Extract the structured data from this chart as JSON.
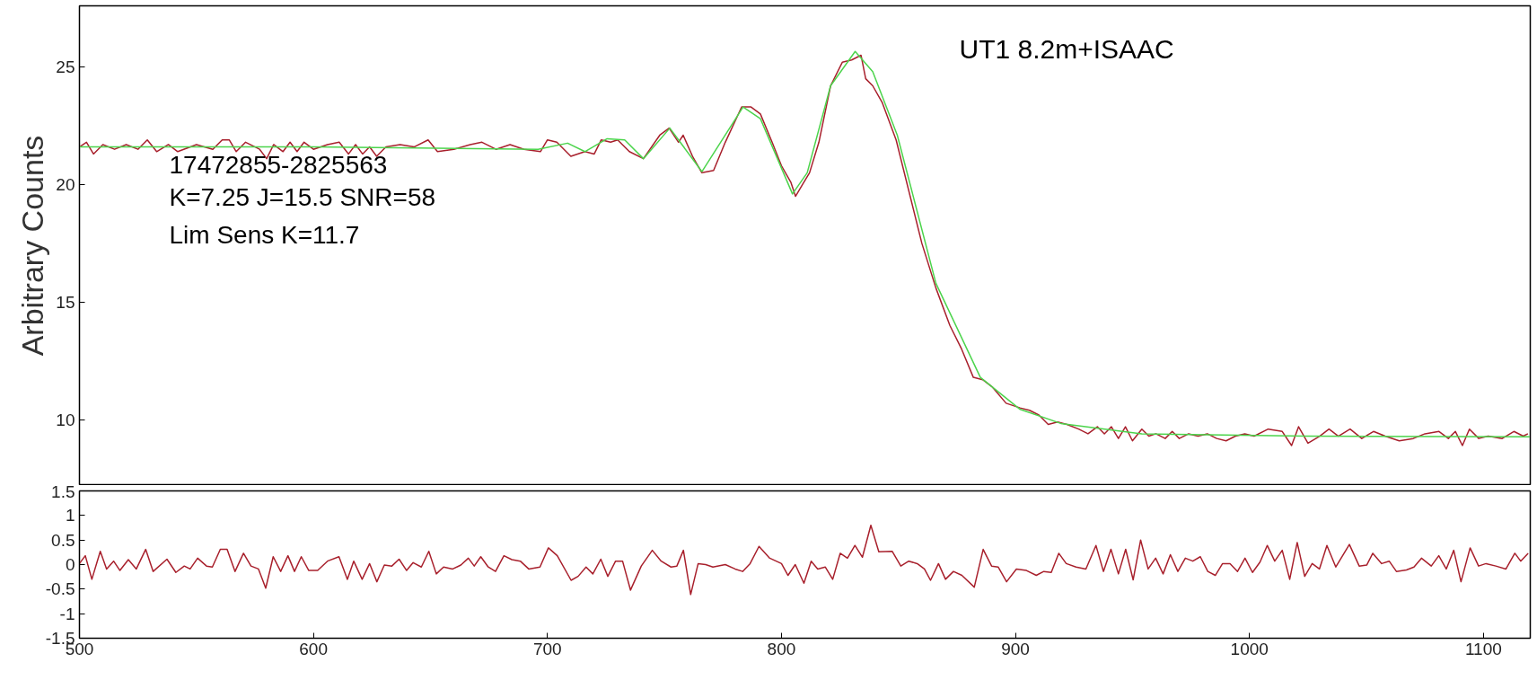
{
  "chart_data": [
    {
      "type": "line",
      "ylabel": "Arbitrary Counts",
      "xlim": [
        500,
        1120
      ],
      "ylim": [
        7.2,
        27.6
      ],
      "yticks": [
        10,
        15,
        20,
        25
      ],
      "tick_labels": "y",
      "grid": false,
      "annotations": [
        "17472855-2825563",
        "K=7.25 J=15.5   SNR=58",
        "Lim Sens K=11.7",
        "UT1 8.2m+ISAAC"
      ],
      "series": [
        {
          "color": "#a8202c",
          "x": [
            500,
            503,
            506,
            510,
            515,
            520,
            525,
            529,
            533,
            538,
            542,
            550,
            557,
            561,
            564,
            567,
            571,
            577,
            580,
            583,
            587,
            590,
            593,
            596,
            600,
            606,
            611,
            615,
            618,
            621,
            624,
            627,
            631,
            637,
            643,
            649,
            653,
            660,
            667,
            672,
            678,
            684,
            690,
            697,
            700,
            704,
            710,
            716,
            720,
            723,
            727,
            730,
            735,
            741,
            748,
            752,
            756,
            758,
            762,
            766,
            771,
            776,
            783,
            787,
            791,
            796,
            800,
            804,
            806,
            809,
            812,
            816,
            821,
            826,
            830,
            834,
            836,
            839,
            843,
            849,
            855,
            860,
            866,
            872,
            877,
            882,
            886,
            890,
            896,
            902,
            906,
            910,
            914,
            918,
            922,
            927,
            931,
            935,
            938,
            941,
            944,
            947,
            950,
            954,
            957,
            960,
            964,
            967,
            970,
            974,
            978,
            982,
            986,
            990,
            994,
            998,
            1002,
            1008,
            1014,
            1018,
            1021,
            1025,
            1030,
            1034,
            1038,
            1043,
            1048,
            1053,
            1058,
            1064,
            1070,
            1075,
            1081,
            1085,
            1088,
            1091,
            1094,
            1098,
            1102,
            1108,
            1113,
            1117,
            1119
          ],
          "values": [
            21.6,
            21.8,
            21.3,
            21.7,
            21.5,
            21.7,
            21.5,
            21.9,
            21.4,
            21.7,
            21.4,
            21.7,
            21.5,
            21.9,
            21.9,
            21.4,
            21.8,
            21.5,
            21.1,
            21.7,
            21.4,
            21.8,
            21.4,
            21.8,
            21.5,
            21.7,
            21.8,
            21.3,
            21.7,
            21.3,
            21.6,
            21.2,
            21.6,
            21.7,
            21.6,
            21.9,
            21.4,
            21.5,
            21.7,
            21.8,
            21.5,
            21.7,
            21.5,
            21.4,
            21.9,
            21.8,
            21.2,
            21.4,
            21.3,
            21.9,
            21.8,
            21.9,
            21.4,
            21.1,
            22.1,
            22.4,
            21.8,
            22.1,
            21.2,
            20.5,
            20.6,
            21.8,
            23.3,
            23.3,
            23.0,
            21.8,
            20.8,
            20.1,
            19.5,
            20.0,
            20.5,
            21.8,
            24.2,
            25.2,
            25.3,
            25.5,
            24.5,
            24.2,
            23.5,
            21.9,
            19.5,
            17.5,
            15.6,
            14.0,
            13.0,
            11.8,
            11.7,
            11.4,
            10.7,
            10.5,
            10.4,
            10.2,
            9.8,
            9.9,
            9.8,
            9.6,
            9.4,
            9.7,
            9.4,
            9.7,
            9.2,
            9.7,
            9.1,
            9.6,
            9.3,
            9.4,
            9.2,
            9.5,
            9.2,
            9.4,
            9.3,
            9.4,
            9.2,
            9.1,
            9.3,
            9.4,
            9.3,
            9.6,
            9.5,
            8.9,
            9.7,
            9.0,
            9.3,
            9.6,
            9.3,
            9.6,
            9.2,
            9.5,
            9.3,
            9.1,
            9.2,
            9.4,
            9.5,
            9.2,
            9.5,
            8.9,
            9.6,
            9.2,
            9.3,
            9.2,
            9.5,
            9.3,
            9.4
          ]
        },
        {
          "color": "#4cd44c",
          "x": [
            500,
            600,
            696,
            708.6,
            716,
            725.5,
            733,
            741,
            752.3,
            766,
            783.6,
            791,
            804.7,
            811,
            821,
            831.5,
            839,
            849.5,
            866,
            885,
            901.8,
            919.4,
            954,
            1024,
            1119.8
          ],
          "values": [
            21.6,
            21.6,
            21.5,
            21.76,
            21.4,
            21.95,
            21.9,
            21.1,
            22.4,
            20.55,
            23.3,
            22.8,
            19.6,
            20.5,
            24.2,
            25.66,
            24.8,
            22.1,
            15.8,
            11.8,
            10.45,
            9.84,
            9.4,
            9.3,
            9.27
          ]
        }
      ]
    },
    {
      "type": "line",
      "xlim": [
        500,
        1120
      ],
      "ylim": [
        -1.5,
        1.5
      ],
      "xticks": [
        500,
        600,
        700,
        800,
        900,
        1000,
        1100
      ],
      "yticks": [
        -1.5,
        -1,
        -0.5,
        0,
        0.5,
        1,
        1.5
      ],
      "grid": false,
      "series": [
        {
          "color": "#a8202c",
          "x": [
            500,
            502.5,
            505.3,
            508.9,
            511.6,
            514.6,
            517.3,
            520.9,
            524.3,
            528.3,
            531.5,
            537.4,
            541.2,
            544.8,
            547.3,
            550.5,
            554.3,
            556.8,
            560.2,
            563.1,
            566.5,
            570.1,
            573.3,
            576.5,
            579.6,
            582.8,
            586.0,
            589.1,
            591.9,
            594.8,
            598.0,
            601.8,
            606.0,
            610.9,
            614.5,
            617.2,
            620.8,
            624.0,
            627.1,
            630.3,
            633.5,
            636.6,
            639.8,
            642.6,
            646.1,
            649.3,
            652.5,
            655.6,
            659.5,
            663.0,
            666.2,
            668.7,
            671.5,
            674.7,
            677.8,
            681.4,
            684.8,
            688.4,
            692.0,
            696.8,
            700.4,
            704.2,
            710.1,
            713.1,
            716.5,
            719.4,
            722.8,
            725.8,
            729.1,
            732.1,
            735.5,
            740.1,
            744.8,
            748.6,
            752.8,
            755.3,
            758.1,
            761.2,
            764.4,
            767.6,
            770.7,
            776.0,
            780.2,
            783.4,
            786.6,
            790.4,
            795.0,
            800,
            802.8,
            805.9,
            809.6,
            812.7,
            815.5,
            818.7,
            821.9,
            825.1,
            828.2,
            831.4,
            834.6,
            838.2,
            841.6,
            847.3,
            851.0,
            854.4,
            858.0,
            861.1,
            863.7,
            867.1,
            870.1,
            873.5,
            877.1,
            882.4,
            886.2,
            889.8,
            892.6,
            896.2,
            900.4,
            904.7,
            908.9,
            912.1,
            915.3,
            918.5,
            921.7,
            925.9,
            930.1,
            934.4,
            937.6,
            940.8,
            944.0,
            947.1,
            950.3,
            953.5,
            956.7,
            959.9,
            963.1,
            966.2,
            969.4,
            972.6,
            975.8,
            979.0,
            982.2,
            985.4,
            988.5,
            991.7,
            994.9,
            998.1,
            1001.3,
            1004.5,
            1007.6,
            1010.8,
            1014.0,
            1017.2,
            1020.4,
            1023.6,
            1026.8,
            1029.9,
            1033.1,
            1036.9,
            1042.7,
            1046.9,
            1050.1,
            1052.7,
            1056.5,
            1059.7,
            1062.8,
            1067.1,
            1070.3,
            1073.5,
            1077.7,
            1080.9,
            1084.1,
            1087.3,
            1090.4,
            1094.3,
            1097.9,
            1101.1,
            1105.3,
            1109.6,
            1113.4,
            1115.9,
            1119.1
          ],
          "values": [
            0.02,
            0.18,
            -0.3,
            0.27,
            -0.09,
            0.07,
            -0.12,
            0.1,
            -0.09,
            0.31,
            -0.14,
            0.11,
            -0.16,
            -0.03,
            -0.09,
            0.13,
            -0.03,
            -0.05,
            0.31,
            0.31,
            -0.14,
            0.23,
            -0.03,
            -0.09,
            -0.48,
            0.16,
            -0.14,
            0.18,
            -0.14,
            0.16,
            -0.12,
            -0.12,
            0.07,
            0.16,
            -0.3,
            0.07,
            -0.3,
            0.02,
            -0.35,
            -0.01,
            -0.03,
            0.11,
            -0.12,
            0.04,
            -0.05,
            0.27,
            -0.19,
            -0.05,
            -0.09,
            -0.01,
            0.13,
            -0.03,
            0.16,
            -0.05,
            -0.14,
            0.18,
            0.1,
            0.07,
            -0.09,
            -0.05,
            0.34,
            0.18,
            -0.32,
            -0.24,
            -0.05,
            -0.19,
            0.11,
            -0.24,
            0.07,
            0.07,
            -0.52,
            -0.03,
            0.29,
            0.07,
            -0.05,
            -0.03,
            0.29,
            -0.61,
            0.02,
            0.0,
            -0.05,
            0.0,
            -0.09,
            -0.14,
            0.02,
            0.37,
            0.13,
            0.02,
            -0.22,
            0.0,
            -0.38,
            0.07,
            -0.09,
            -0.05,
            -0.3,
            0.23,
            0.13,
            0.39,
            0.15,
            0.8,
            0.26,
            0.27,
            -0.03,
            0.07,
            0.02,
            -0.09,
            -0.32,
            0.02,
            -0.3,
            -0.14,
            -0.22,
            -0.46,
            0.31,
            -0.03,
            -0.05,
            -0.35,
            -0.09,
            -0.12,
            -0.22,
            -0.14,
            -0.16,
            0.23,
            0.02,
            -0.05,
            -0.09,
            0.39,
            -0.14,
            0.31,
            -0.19,
            0.31,
            -0.31,
            0.5,
            -0.09,
            0.13,
            -0.19,
            0.2,
            -0.14,
            0.13,
            0.07,
            0.16,
            -0.14,
            -0.22,
            0.02,
            0.02,
            -0.14,
            0.13,
            -0.16,
            0.05,
            0.39,
            0.07,
            0.29,
            -0.3,
            0.45,
            -0.24,
            0.02,
            -0.09,
            0.39,
            -0.05,
            0.41,
            -0.03,
            -0.01,
            0.23,
            0.02,
            0.07,
            -0.14,
            -0.11,
            -0.05,
            0.13,
            -0.03,
            0.18,
            -0.09,
            0.29,
            -0.35,
            0.34,
            -0.03,
            0.02,
            -0.03,
            -0.09,
            0.23,
            0.07,
            0.23
          ]
        }
      ]
    }
  ]
}
